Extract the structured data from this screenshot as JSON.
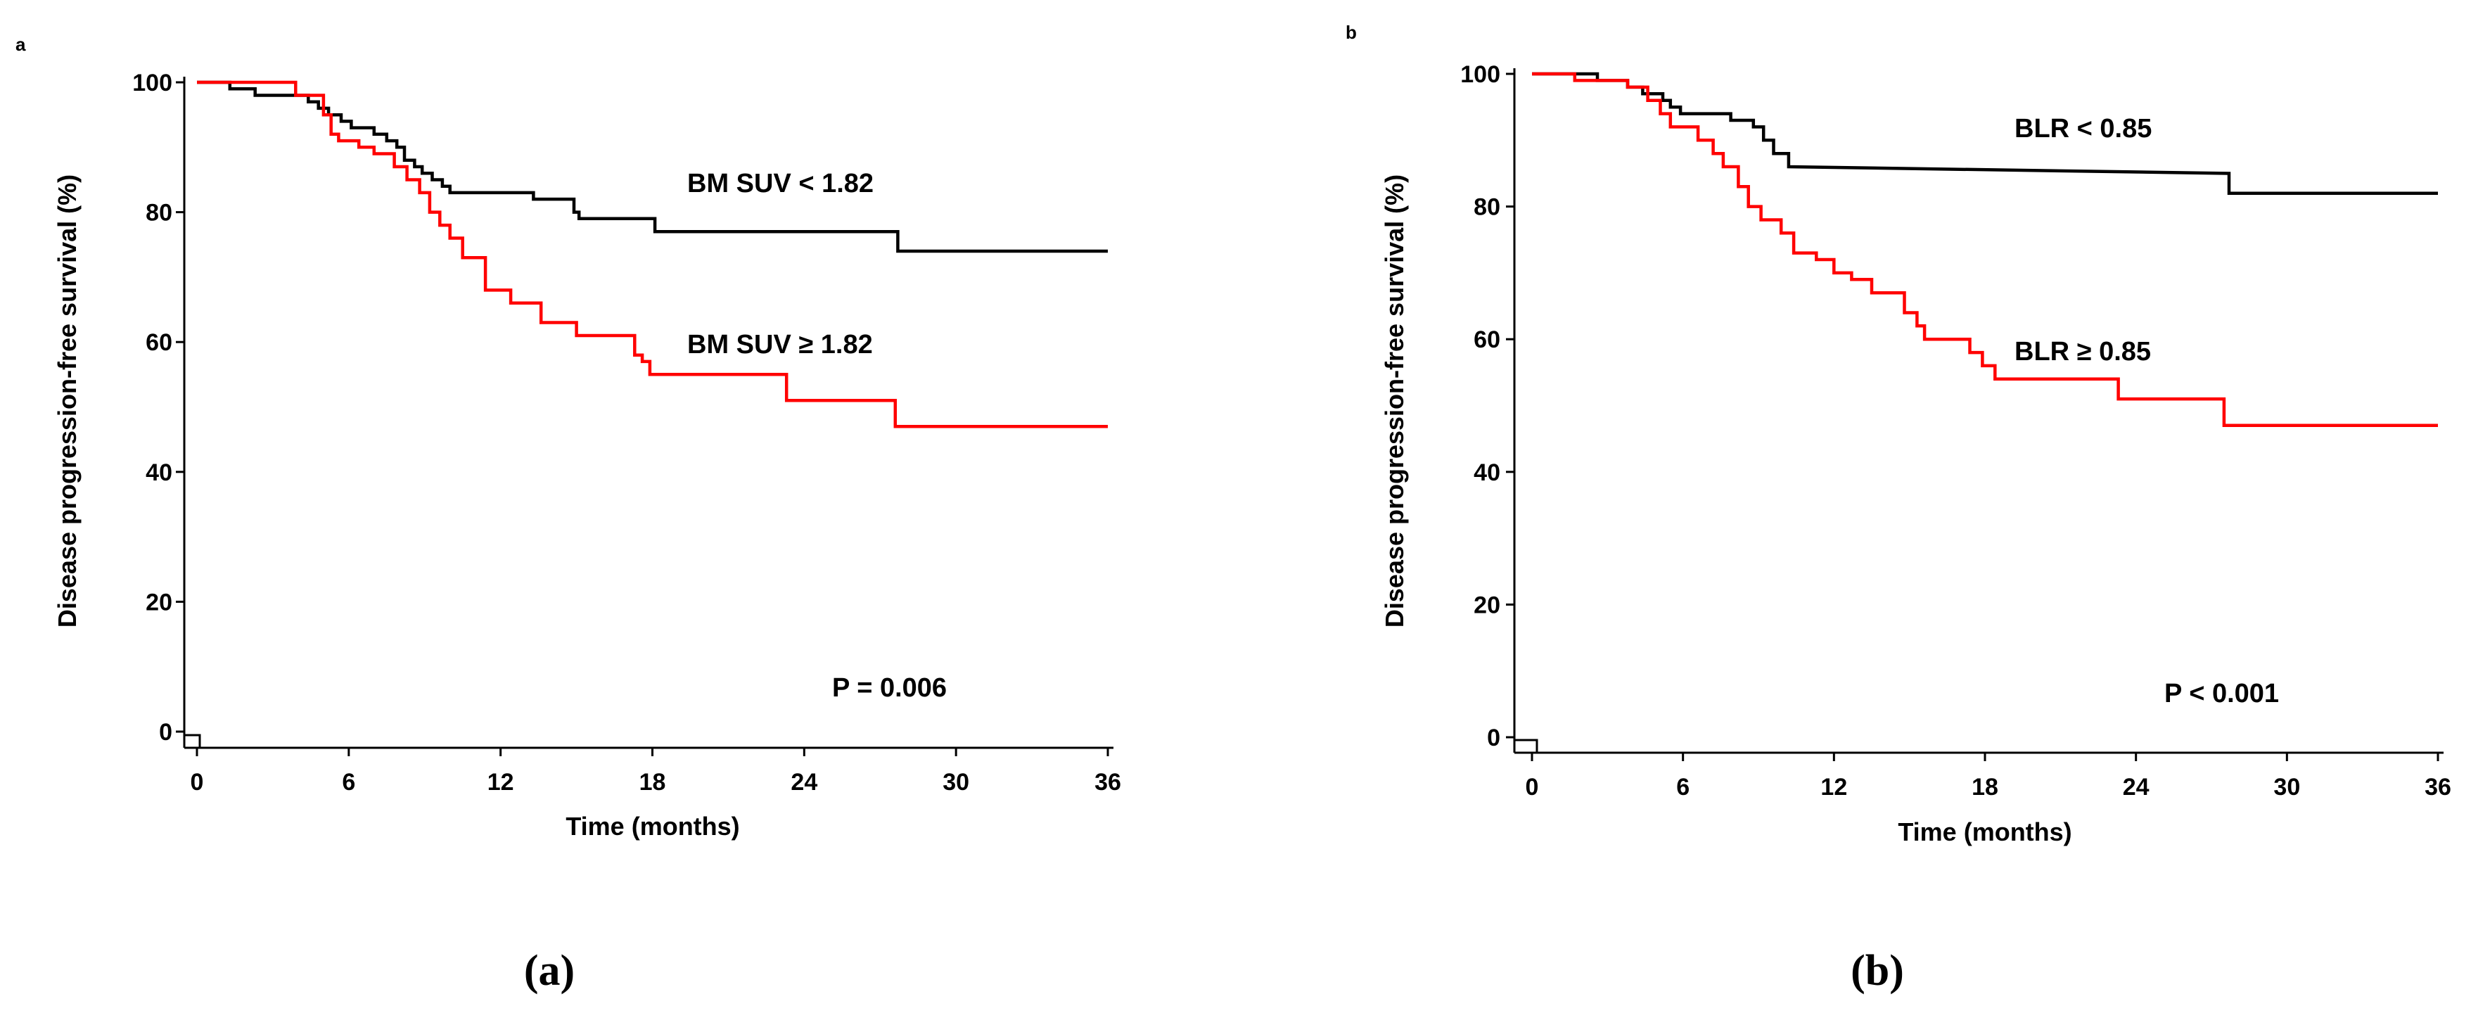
{
  "chart_data": [
    {
      "type": "line",
      "panel_letter": "a",
      "caption": "(a)",
      "title": "",
      "xlabel": "Time (months)",
      "ylabel": "Disease progression-free survival (%)",
      "xlim": [
        0,
        36
      ],
      "ylim": [
        0,
        100
      ],
      "xticks": [
        0,
        6,
        12,
        18,
        24,
        30,
        36
      ],
      "yticks": [
        0,
        20,
        40,
        60,
        80,
        100
      ],
      "grid": false,
      "annotation": "P = 0.006",
      "series": [
        {
          "name": "BM SUV < 1.82",
          "color": "#000000",
          "x": [
            0,
            1.3,
            2.3,
            4.4,
            4.8,
            5.2,
            5.7,
            6.1,
            7.0,
            7.5,
            7.9,
            8.2,
            8.6,
            8.9,
            9.3,
            9.7,
            10.0,
            13.3,
            14.9,
            15.1,
            18.1,
            27.7,
            36
          ],
          "y": [
            100,
            99,
            98,
            97,
            96,
            95,
            94,
            93,
            92,
            91,
            90,
            88,
            87,
            86,
            85,
            84,
            83,
            82,
            80,
            79,
            77,
            74,
            74
          ]
        },
        {
          "name": "BM SUV ≥ 1.82",
          "color": "#ff0000",
          "x": [
            0,
            3.9,
            5.0,
            5.3,
            5.6,
            6.4,
            7.0,
            7.8,
            8.3,
            8.8,
            9.2,
            9.6,
            10.0,
            10.5,
            11.4,
            12.4,
            13.6,
            15.0,
            17.3,
            17.6,
            17.9,
            23.3,
            27.6,
            36
          ],
          "y": [
            100,
            98,
            95,
            92,
            91,
            90,
            89,
            87,
            85,
            83,
            80,
            78,
            76,
            73,
            68,
            66,
            63,
            61,
            58,
            57,
            55,
            51,
            47,
            47
          ]
        }
      ]
    },
    {
      "type": "line",
      "panel_letter": "b",
      "caption": "(b)",
      "title": "",
      "xlabel": "Time (months)",
      "ylabel": "Disease progression-free survival (%)",
      "xlim": [
        0,
        36
      ],
      "ylim": [
        0,
        100
      ],
      "xticks": [
        0,
        6,
        12,
        18,
        24,
        30,
        36
      ],
      "yticks": [
        0,
        20,
        40,
        60,
        80,
        100
      ],
      "grid": false,
      "annotation": "P < 0.001",
      "series": [
        {
          "name": "BLR < 0.85",
          "color": "#000000",
          "x": [
            0,
            2.6,
            3.8,
            4.4,
            5.2,
            5.5,
            5.9,
            7.9,
            8.8,
            9.2,
            9.6,
            10.2,
            27.7,
            36
          ],
          "y": [
            100,
            99,
            98,
            97,
            96,
            95,
            94,
            93,
            92,
            90,
            88,
            86,
            82,
            82
          ],
          "y_before_last_step": 85
        },
        {
          "name": "BLR ≥ 0.85",
          "color": "#ff0000",
          "x": [
            0,
            1.7,
            3.8,
            4.6,
            5.1,
            5.5,
            6.6,
            7.2,
            7.6,
            8.2,
            8.6,
            9.1,
            9.9,
            10.4,
            11.3,
            12.0,
            12.7,
            13.5,
            14.8,
            15.3,
            15.6,
            17.4,
            17.9,
            18.4,
            23.3,
            27.5,
            36
          ],
          "y": [
            100,
            99,
            98,
            96,
            94,
            92,
            90,
            88,
            86,
            83,
            80,
            78,
            76,
            73,
            72,
            70,
            69,
            67,
            64,
            62,
            60,
            58,
            56,
            54,
            51,
            47,
            47
          ]
        }
      ]
    }
  ]
}
